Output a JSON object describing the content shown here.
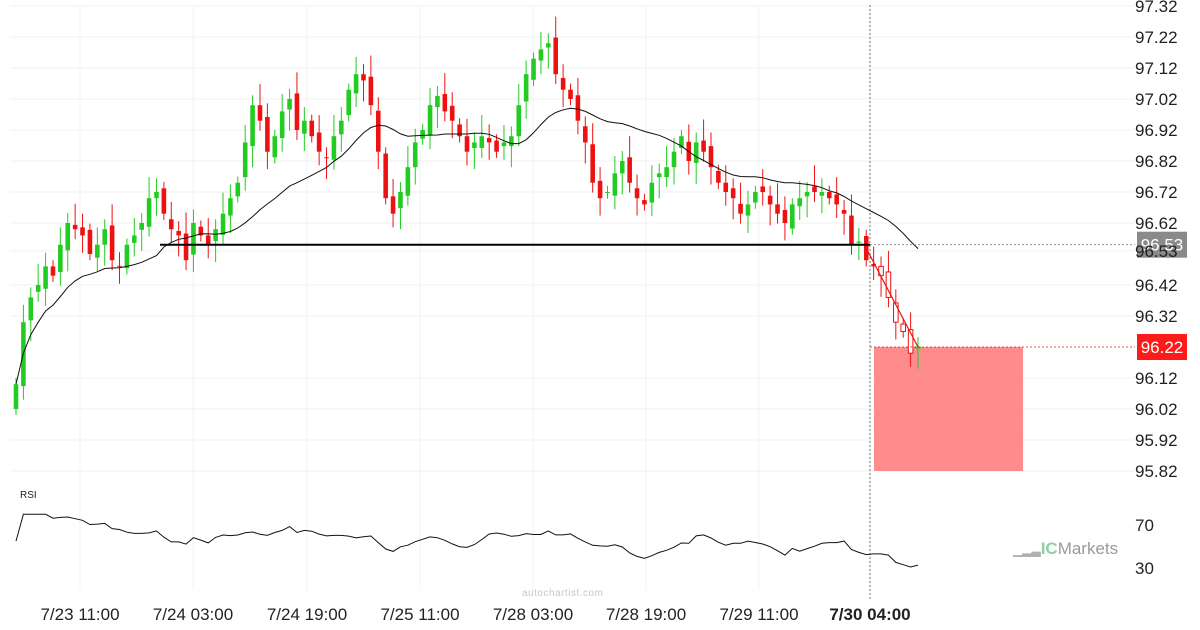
{
  "brand": {
    "ic": "IC",
    "name": "Markets"
  },
  "watermark": "autochartist.com",
  "colors": {
    "up": "#22cc22",
    "down": "#ee1111",
    "price_tag_last": "#ff1a1a",
    "price_tag_level": "#8a8a8a",
    "target_zone": "#ff8c8c"
  },
  "chart_data": [
    {
      "type": "candlestick",
      "title": "",
      "ylabel": "",
      "xlabel": "",
      "y_ticks": [
        "97.32",
        "97.22",
        "97.12",
        "97.02",
        "96.92",
        "96.82",
        "96.72",
        "96.62",
        "96.53",
        "96.42",
        "96.32",
        "96.22",
        "96.12",
        "96.02",
        "95.92",
        "95.82"
      ],
      "ylim": [
        95.8,
        97.33
      ],
      "x_ticks": [
        "7/23 11:00",
        "7/24 03:00",
        "7/24 19:00",
        "7/25 11:00",
        "7/28 03:00",
        "7/28 19:00",
        "7/29 11:00",
        "7/30 04:00"
      ],
      "grid": true,
      "candles_close": [
        96.1,
        96.3,
        96.38,
        96.42,
        96.48,
        96.45,
        96.55,
        96.62,
        96.6,
        96.58,
        96.52,
        96.55,
        96.6,
        96.5,
        96.48,
        96.55,
        96.58,
        96.62,
        96.7,
        96.72,
        96.65,
        96.6,
        96.58,
        96.5,
        96.62,
        96.58,
        96.55,
        96.6,
        96.65,
        96.7,
        96.75,
        96.88,
        97.0,
        96.95,
        96.85,
        96.9,
        96.98,
        97.02,
        96.92,
        96.95,
        96.9,
        96.85,
        96.83,
        96.9,
        96.95,
        97.05,
        97.1,
        97.08,
        97.0,
        96.85,
        96.7,
        96.65,
        96.72,
        96.8,
        96.88,
        96.92,
        97.0,
        97.03,
        96.98,
        96.95,
        96.9,
        96.85,
        96.88,
        96.9,
        96.88,
        96.85,
        96.88,
        96.9,
        97.0,
        97.1,
        97.15,
        97.18,
        97.2,
        97.1,
        97.05,
        97.02,
        96.95,
        96.88,
        96.75,
        96.7,
        96.72,
        96.78,
        96.82,
        96.75,
        96.7,
        96.68,
        96.75,
        96.78,
        96.8,
        96.85,
        96.9,
        96.82,
        96.88,
        96.85,
        96.8,
        96.75,
        96.72,
        96.7,
        96.65,
        96.68,
        96.72,
        96.72,
        96.68,
        96.65,
        96.62,
        96.68,
        96.7,
        96.72,
        96.72,
        96.72,
        96.7,
        96.68,
        96.65,
        96.55,
        96.56,
        96.5,
        96.48,
        96.45,
        96.38,
        96.3,
        96.27,
        96.2,
        96.22
      ],
      "sma": "trailing-20",
      "support_level": 96.55,
      "pattern_breakout": {
        "from_price": 96.54,
        "to_price": 96.22
      },
      "last_price": 96.22,
      "target_zone": {
        "top": 96.22,
        "bottom": 95.82
      },
      "forecast_start": "7/30 04:00"
    },
    {
      "type": "line",
      "title": "RSI",
      "y_ticks": [
        "70",
        "30"
      ],
      "ylim": [
        20,
        85
      ]
    }
  ]
}
